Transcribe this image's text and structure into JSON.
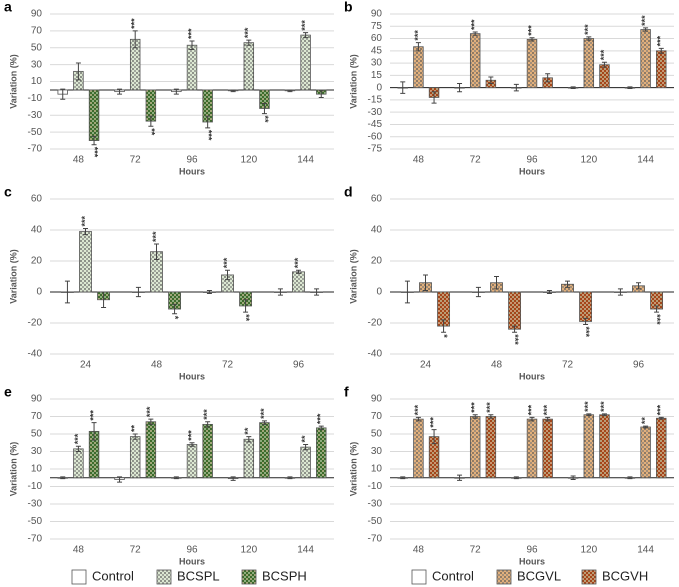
{
  "chart_data": [
    {
      "type": "bar",
      "panel": "a",
      "y_label": "Variation (%)",
      "x_label": "Hours",
      "categories": [
        "48",
        "72",
        "96",
        "120",
        "144"
      ],
      "ylim": [
        -70,
        90
      ],
      "yticks": [
        -70,
        -50,
        -30,
        -10,
        10,
        30,
        50,
        70,
        90
      ],
      "grid": true,
      "series": [
        {
          "name": "Control",
          "color": "#ffffff",
          "values": [
            -5,
            -2,
            -2,
            -1,
            -1
          ],
          "errors": [
            6,
            3,
            3,
            1,
            1
          ]
        },
        {
          "name": "BCSPL",
          "color": "#dce8d2",
          "values": [
            22,
            60,
            53,
            56,
            65
          ],
          "errors": [
            10,
            10,
            5,
            3,
            3
          ],
          "stars": [
            null,
            "***",
            "***",
            "***",
            "***"
          ]
        },
        {
          "name": "BCSPH",
          "color": "#3d6b2c",
          "values": [
            -60,
            -37,
            -38,
            -22,
            -5
          ],
          "errors": [
            5,
            6,
            7,
            6,
            4
          ],
          "stars": [
            "***",
            "**",
            "***",
            "**",
            null
          ]
        }
      ]
    },
    {
      "type": "bar",
      "panel": "b",
      "y_label": "Variation (%)",
      "x_label": "Hours",
      "categories": [
        "48",
        "72",
        "96",
        "120",
        "144"
      ],
      "ylim": [
        -75,
        90
      ],
      "yticks": [
        -75,
        -60,
        -45,
        -30,
        -15,
        0,
        15,
        30,
        45,
        60,
        75,
        90
      ],
      "grid": true,
      "series": [
        {
          "name": "Control",
          "color": "#ffffff",
          "values": [
            0,
            0,
            0,
            0,
            0
          ],
          "errors": [
            7,
            5,
            4,
            1,
            1
          ]
        },
        {
          "name": "BCGVL",
          "color": "#e2b07c",
          "values": [
            50,
            66,
            59,
            60,
            71
          ],
          "errors": [
            5,
            2,
            2,
            2,
            2
          ],
          "stars": [
            "***",
            "***",
            "***",
            "***",
            "***"
          ]
        },
        {
          "name": "BCGVH",
          "color": "#a3461a",
          "values": [
            -12,
            9,
            12,
            28,
            45
          ],
          "errors": [
            7,
            4,
            5,
            3,
            3
          ],
          "stars": [
            null,
            null,
            null,
            "***",
            "***"
          ]
        }
      ]
    },
    {
      "type": "bar",
      "panel": "c",
      "y_label": "Variation (%)",
      "x_label": "Hours",
      "categories": [
        "24",
        "48",
        "72",
        "96"
      ],
      "ylim": [
        -40,
        60
      ],
      "yticks": [
        -40,
        -20,
        0,
        20,
        40,
        60
      ],
      "grid": true,
      "series": [
        {
          "name": "Control",
          "color": "#ffffff",
          "values": [
            0,
            0,
            0,
            0
          ],
          "errors": [
            7,
            3,
            1,
            2
          ]
        },
        {
          "name": "BCSPL",
          "color": "#dce8d2",
          "values": [
            39,
            26,
            11,
            13
          ],
          "errors": [
            2,
            5,
            3,
            1
          ],
          "stars": [
            "***",
            "***",
            "***",
            "***"
          ]
        },
        {
          "name": "BCSPH",
          "color": "#3d6b2c",
          "values": [
            -5,
            -11,
            -9,
            0
          ],
          "errors": [
            5,
            3,
            4,
            2
          ],
          "stars": [
            null,
            "*",
            "**",
            null
          ]
        }
      ]
    },
    {
      "type": "bar",
      "panel": "d",
      "y_label": "Variation (%)",
      "x_label": "Hours",
      "categories": [
        "24",
        "48",
        "72",
        "96"
      ],
      "ylim": [
        -40,
        60
      ],
      "yticks": [
        -40,
        -20,
        0,
        20,
        40,
        60
      ],
      "grid": true,
      "series": [
        {
          "name": "Control",
          "color": "#ffffff",
          "values": [
            0,
            0,
            0,
            0
          ],
          "errors": [
            7,
            3,
            1,
            2
          ]
        },
        {
          "name": "BCGVL",
          "color": "#e2b07c",
          "values": [
            6,
            6,
            5,
            4
          ],
          "errors": [
            5,
            4,
            2,
            2
          ],
          "stars": [
            null,
            null,
            null,
            null
          ]
        },
        {
          "name": "BCGVH",
          "color": "#a3461a",
          "values": [
            -22,
            -24,
            -19,
            -11
          ],
          "errors": [
            4,
            2,
            2,
            2
          ],
          "stars": [
            "*",
            "***",
            "***",
            "***"
          ]
        }
      ]
    },
    {
      "type": "bar",
      "panel": "e",
      "y_label": "Variation (%)",
      "x_label": "Hours",
      "categories": [
        "48",
        "72",
        "96",
        "120",
        "144"
      ],
      "ylim": [
        -70,
        90
      ],
      "yticks": [
        -70,
        -50,
        -30,
        -10,
        10,
        30,
        50,
        70,
        90
      ],
      "grid": true,
      "series": [
        {
          "name": "Control",
          "color": "#ffffff",
          "values": [
            0,
            -2,
            0,
            -1,
            0
          ],
          "errors": [
            1,
            3,
            1,
            2,
            1
          ]
        },
        {
          "name": "BCSPL",
          "color": "#dce8d2",
          "values": [
            33,
            47,
            38,
            44,
            35
          ],
          "errors": [
            3,
            3,
            2,
            3,
            3
          ],
          "stars": [
            "***",
            "**",
            "***",
            "**",
            "**"
          ]
        },
        {
          "name": "BCSPH",
          "color": "#3d6b2c",
          "values": [
            53,
            64,
            61,
            63,
            57
          ],
          "errors": [
            10,
            3,
            3,
            2,
            2
          ],
          "stars": [
            "***",
            "***",
            "***",
            "***",
            "***"
          ]
        }
      ]
    },
    {
      "type": "bar",
      "panel": "f",
      "y_label": "Variation (%)",
      "x_label": "Hours",
      "categories": [
        "48",
        "72",
        "96",
        "120",
        "144"
      ],
      "ylim": [
        -70,
        90
      ],
      "yticks": [
        -70,
        -50,
        -30,
        -10,
        10,
        30,
        50,
        70,
        90
      ],
      "grid": true,
      "series": [
        {
          "name": "Control",
          "color": "#ffffff",
          "values": [
            0,
            0,
            0,
            0,
            0
          ],
          "errors": [
            1,
            3,
            1,
            2,
            1
          ]
        },
        {
          "name": "BCGVL",
          "color": "#e2b07c",
          "values": [
            67,
            70,
            67,
            72,
            58
          ],
          "errors": [
            2,
            2,
            2,
            1,
            1
          ],
          "stars": [
            "***",
            "***",
            "***",
            "***",
            "**"
          ]
        },
        {
          "name": "BCGVH",
          "color": "#a3461a",
          "values": [
            47,
            70,
            67,
            72,
            68
          ],
          "errors": [
            8,
            2,
            2,
            1,
            1
          ],
          "stars": [
            "***",
            "***",
            "***",
            "***",
            "***"
          ]
        }
      ]
    }
  ]
}
